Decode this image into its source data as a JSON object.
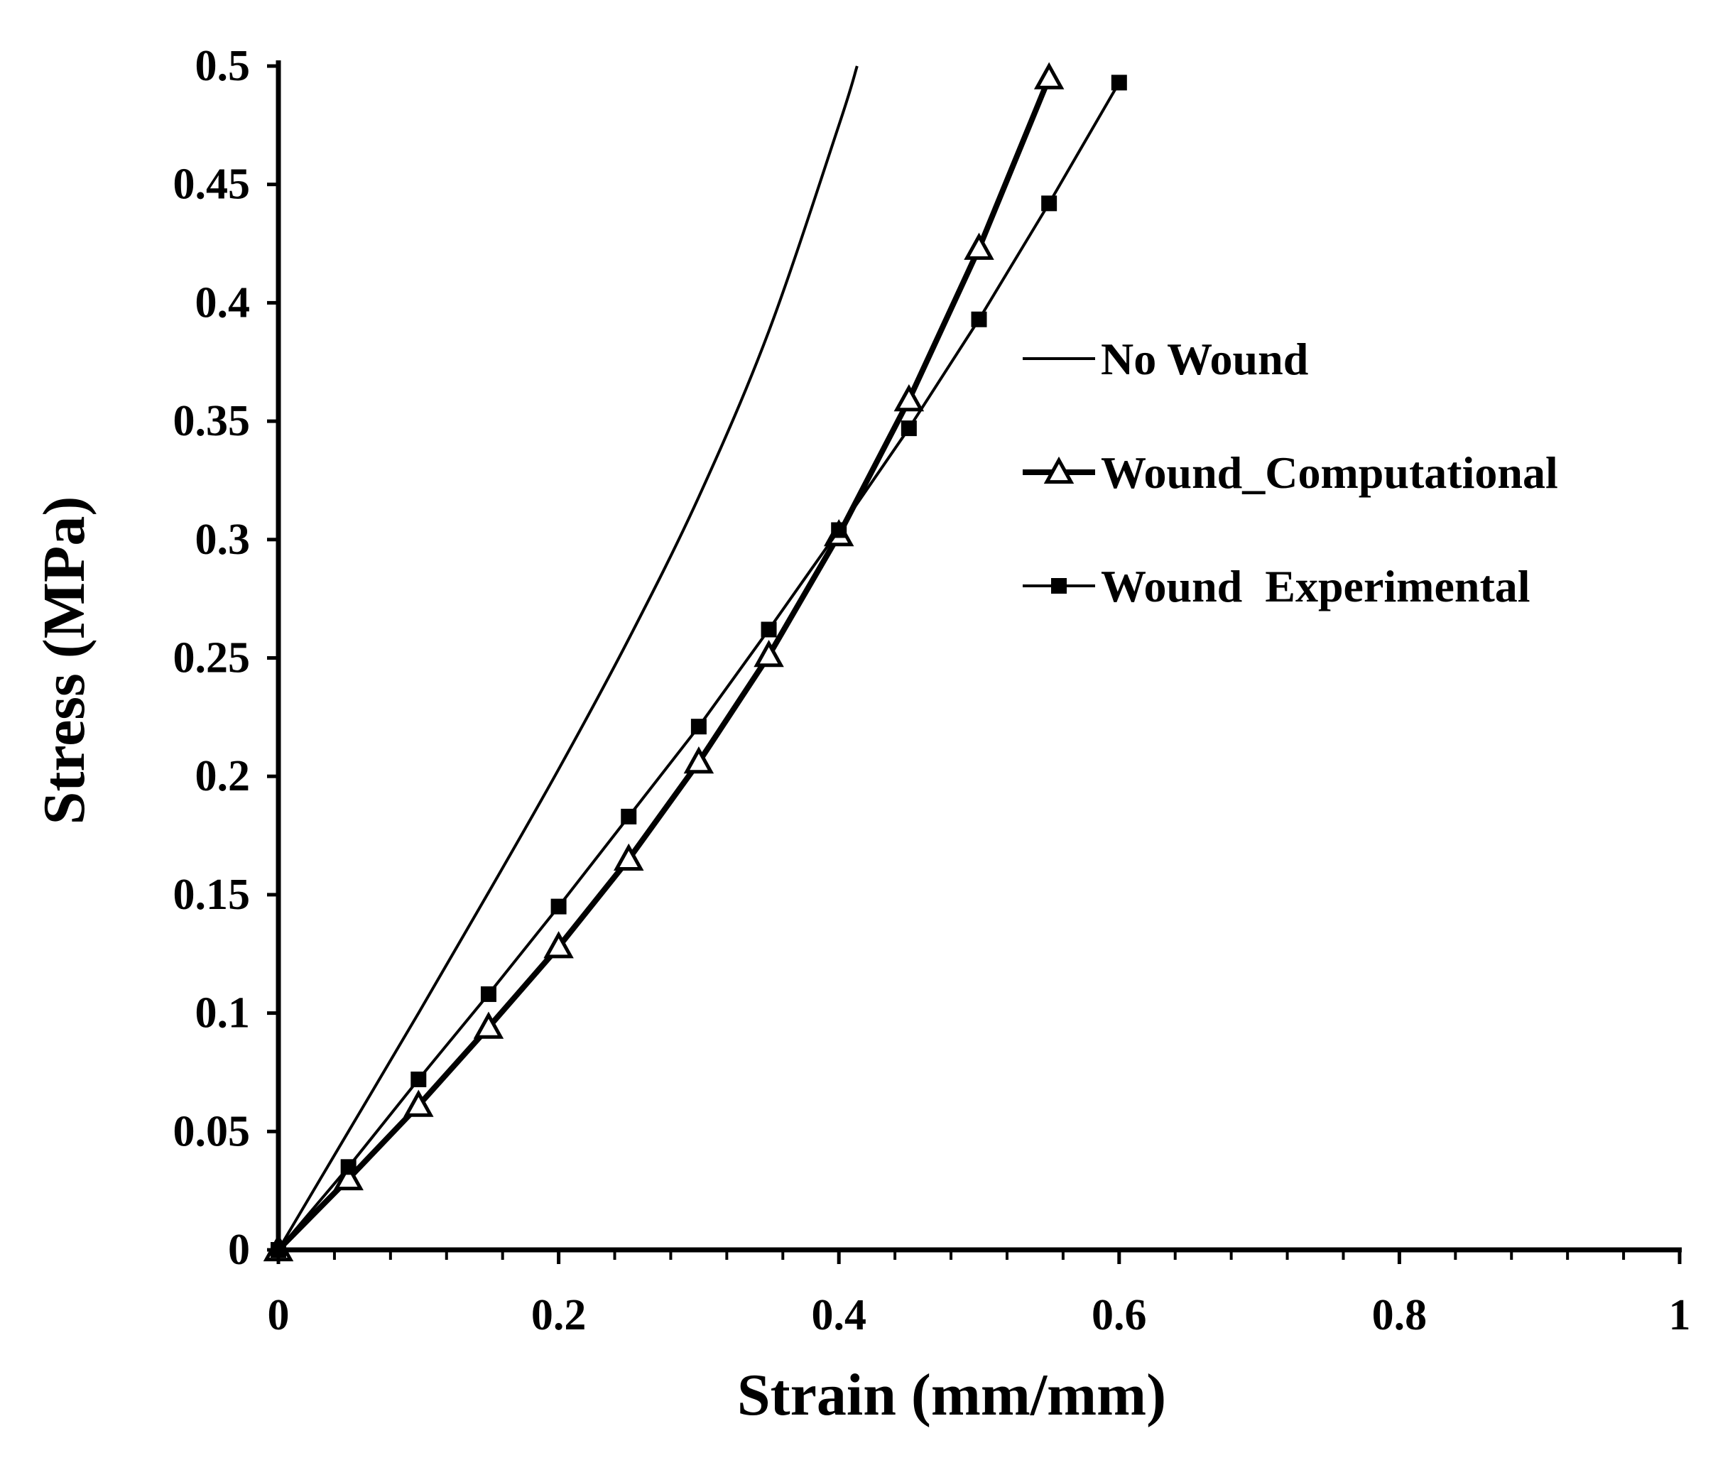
{
  "chart_data": {
    "type": "line",
    "xlabel": "Strain (mm/mm)",
    "ylabel": "Stress (MPa)",
    "xlim": [
      0,
      1
    ],
    "ylim": [
      0,
      0.5
    ],
    "x_ticks": [
      "0",
      "0.2",
      "0.4",
      "0.6",
      "0.8",
      "1"
    ],
    "y_ticks": [
      "0",
      "0.05",
      "0.1",
      "0.15",
      "0.2",
      "0.25",
      "0.3",
      "0.35",
      "0.4",
      "0.45",
      "0.5"
    ],
    "grid": false,
    "legend_position": "right",
    "series": [
      {
        "name": "No Wound",
        "marker": "none",
        "line": "thin",
        "color": "#000000",
        "x": [
          0,
          0.05,
          0.1,
          0.15,
          0.2,
          0.25,
          0.3,
          0.35,
          0.4,
          0.413
        ],
        "y": [
          0,
          0.05,
          0.1,
          0.151,
          0.203,
          0.258,
          0.318,
          0.388,
          0.475,
          0.5
        ]
      },
      {
        "name": "Wound_Computational",
        "marker": "triangle",
        "line": "thick",
        "color": "#000000",
        "x": [
          0,
          0.05,
          0.1,
          0.15,
          0.2,
          0.25,
          0.3,
          0.35,
          0.4,
          0.45,
          0.5,
          0.55
        ],
        "y": [
          0,
          0.03,
          0.061,
          0.094,
          0.128,
          0.165,
          0.206,
          0.251,
          0.302,
          0.359,
          0.423,
          0.495
        ]
      },
      {
        "name": "Wound  Experimental",
        "marker": "square",
        "line": "thin",
        "color": "#000000",
        "x": [
          0,
          0.05,
          0.1,
          0.15,
          0.2,
          0.25,
          0.3,
          0.35,
          0.4,
          0.45,
          0.5,
          0.55,
          0.6
        ],
        "y": [
          0,
          0.035,
          0.072,
          0.108,
          0.145,
          0.183,
          0.221,
          0.262,
          0.304,
          0.347,
          0.393,
          0.442,
          0.493
        ]
      }
    ]
  }
}
